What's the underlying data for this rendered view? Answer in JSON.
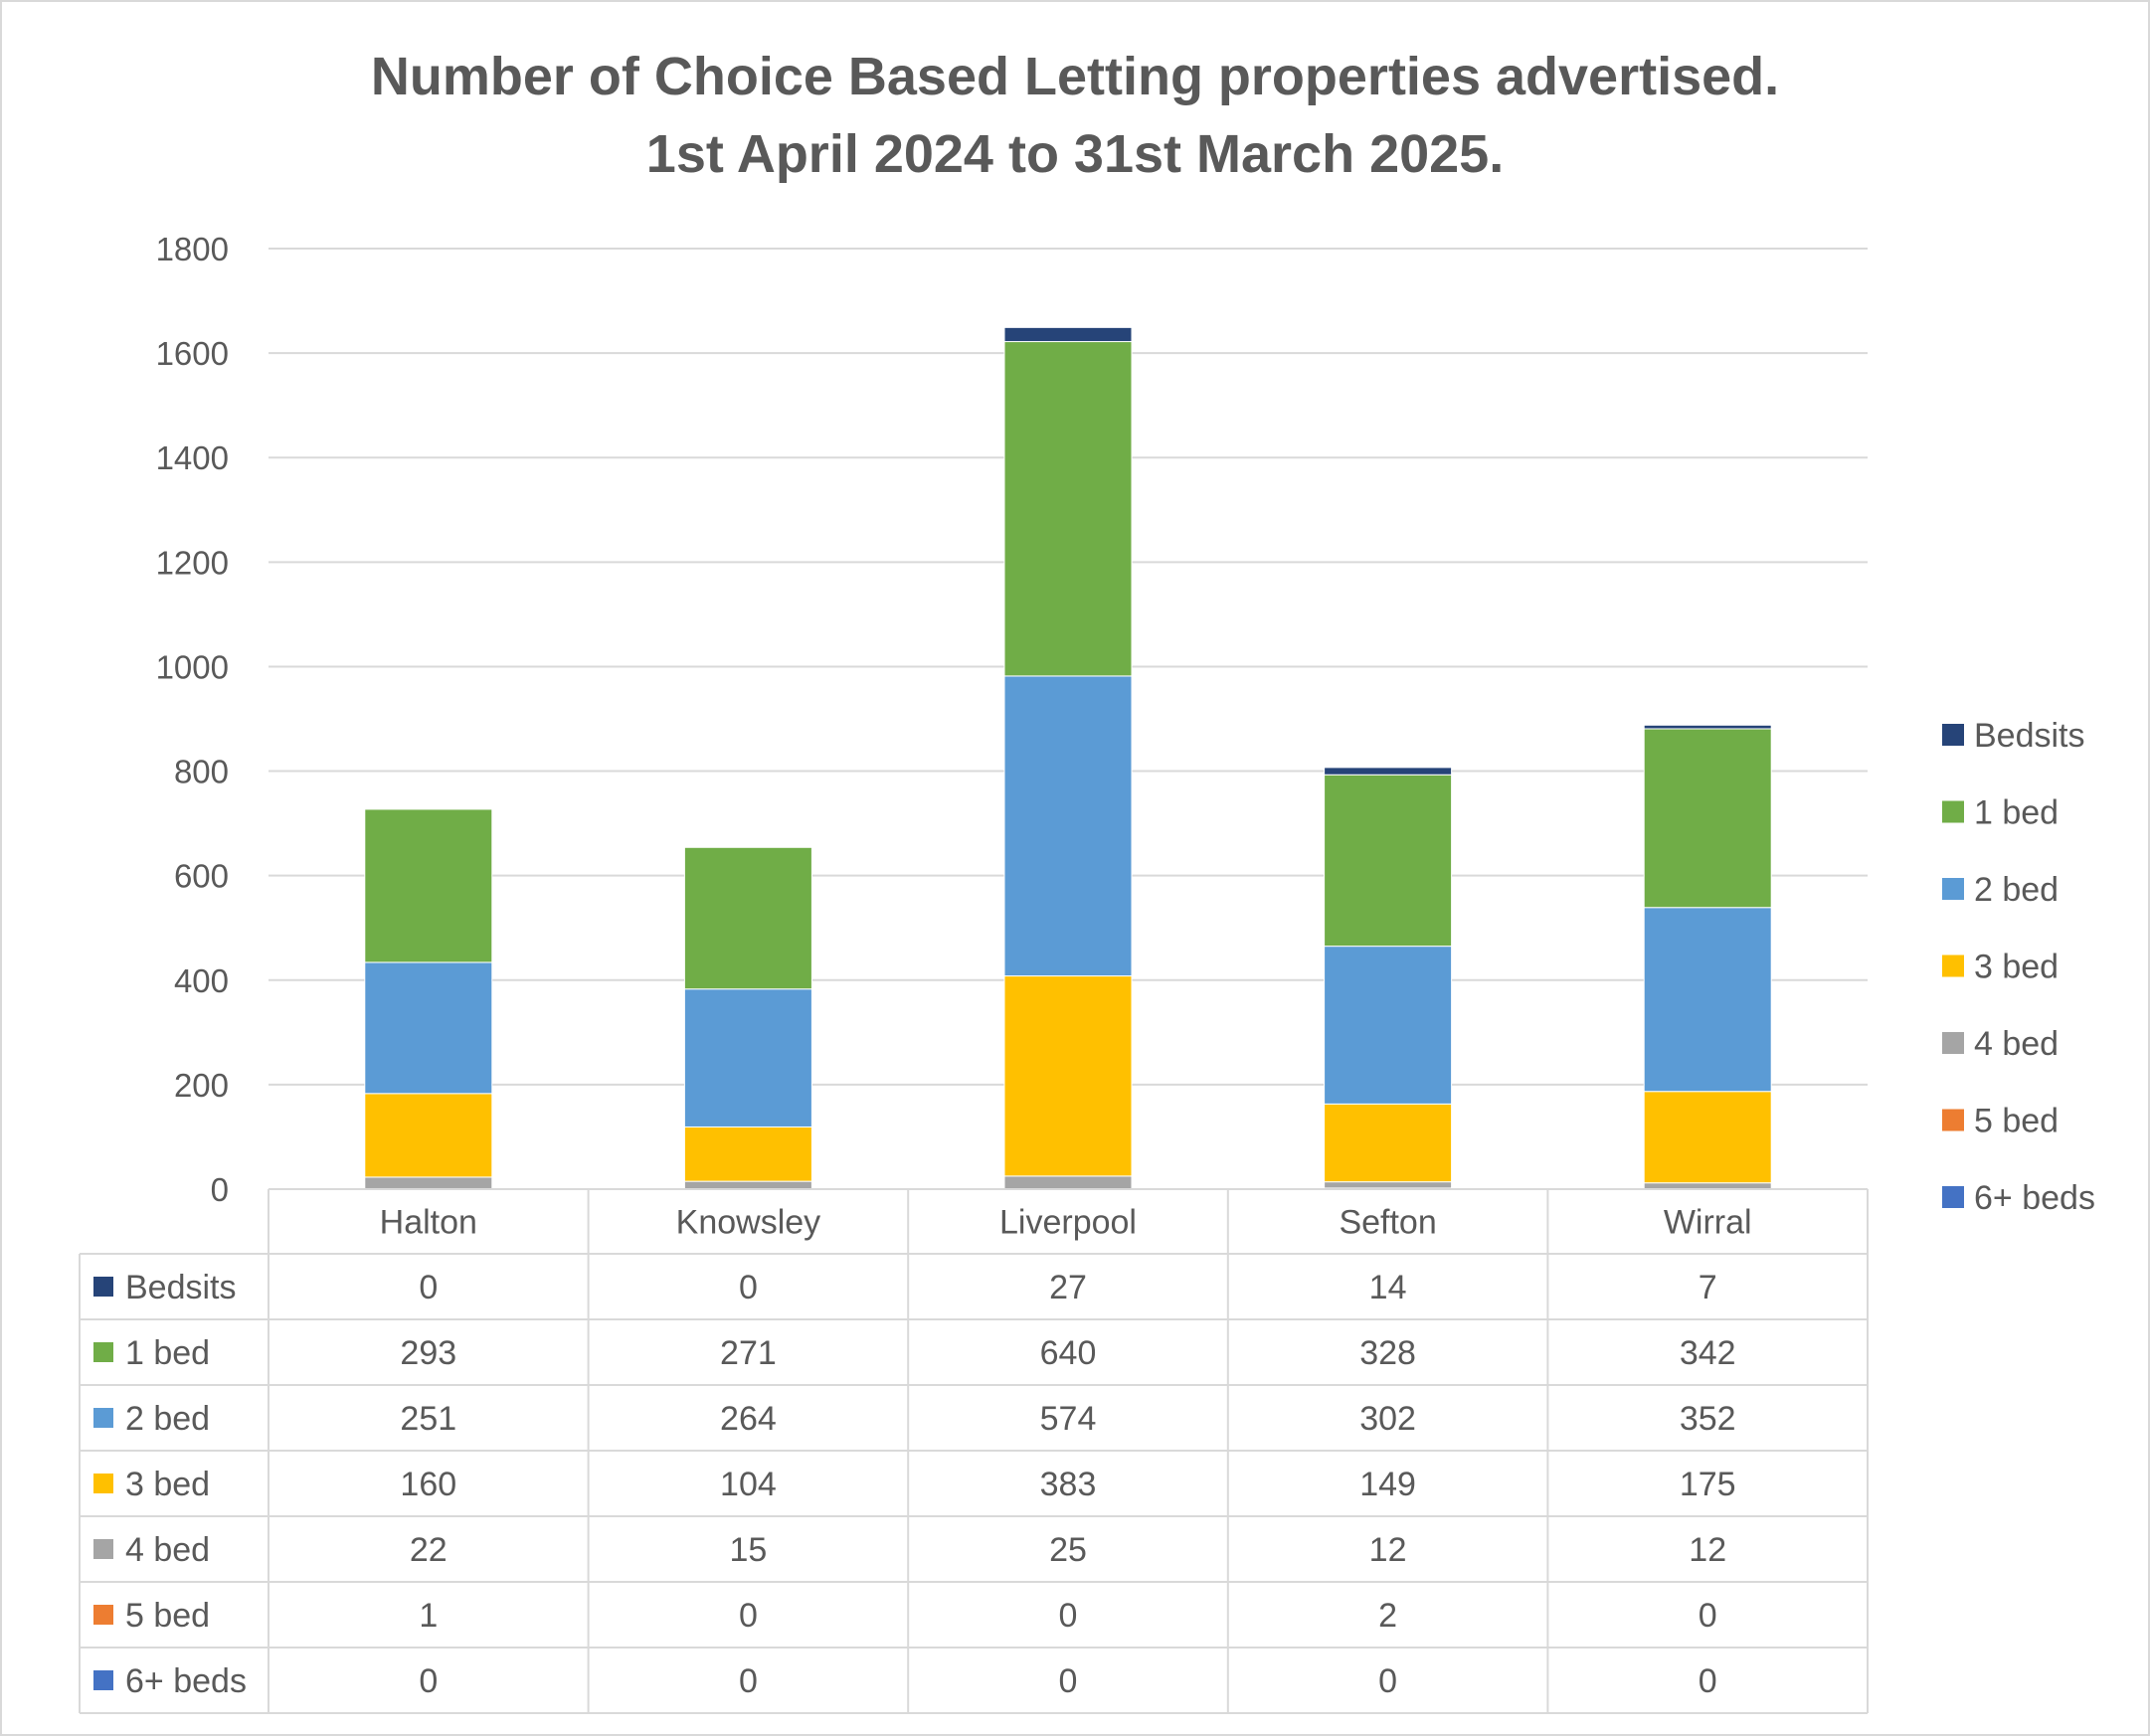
{
  "chart_data": {
    "type": "bar",
    "stacked": true,
    "title": [
      "Number of Choice Based Letting properties advertised.",
      "1st April 2024 to 31st March 2025."
    ],
    "categories": [
      "Halton",
      "Knowsley",
      "Liverpool",
      "Sefton",
      "Wirral"
    ],
    "ylim": [
      0,
      1800
    ],
    "yticks": [
      0,
      200,
      400,
      600,
      800,
      1000,
      1200,
      1400,
      1600,
      1800
    ],
    "grid": true,
    "legend_position": "right",
    "data_table": true,
    "series": [
      {
        "name": "6+ beds",
        "color": "#4472C4",
        "values": [
          0,
          0,
          0,
          0,
          0
        ]
      },
      {
        "name": "5 bed",
        "color": "#ED7D31",
        "values": [
          1,
          0,
          0,
          2,
          0
        ]
      },
      {
        "name": "4 bed",
        "color": "#A5A5A5",
        "values": [
          22,
          15,
          25,
          12,
          12
        ]
      },
      {
        "name": "3 bed",
        "color": "#FFC000",
        "values": [
          160,
          104,
          383,
          149,
          175
        ]
      },
      {
        "name": "2 bed",
        "color": "#5B9BD5",
        "values": [
          251,
          264,
          574,
          302,
          352
        ]
      },
      {
        "name": "1 bed",
        "color": "#70AD47",
        "values": [
          293,
          271,
          640,
          328,
          342
        ]
      },
      {
        "name": "Bedsits",
        "color": "#264478",
        "values": [
          0,
          0,
          27,
          14,
          7
        ]
      }
    ]
  }
}
